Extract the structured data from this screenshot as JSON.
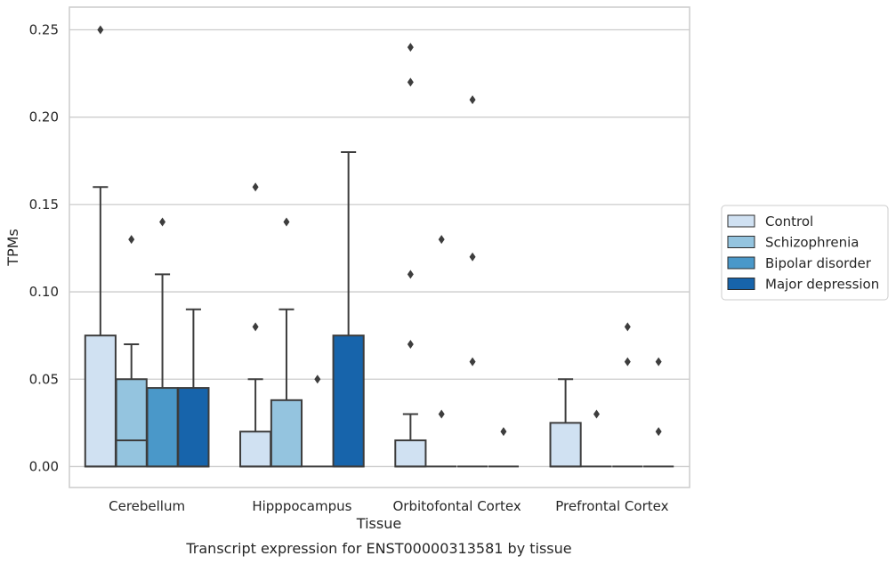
{
  "chart_data": {
    "type": "boxplot",
    "title": "",
    "xlabel": "Tissue",
    "ylabel": "TPMs",
    "caption": "Transcript expression for ENST00000313581 by tissue",
    "ylim": [
      -0.012,
      0.263
    ],
    "yticks": [
      0.0,
      0.05,
      0.1,
      0.15,
      0.2,
      0.25
    ],
    "ytick_labels": [
      "0.00",
      "0.05",
      "0.10",
      "0.15",
      "0.20",
      "0.25"
    ],
    "grid": "horizontal",
    "legend_position": "right",
    "categories": [
      "Cerebellum",
      "Hipppocampus",
      "Orbitofontal Cortex",
      "Prefrontal Cortex"
    ],
    "series": [
      {
        "name": "Control",
        "color": "#d0e1f2",
        "boxes": [
          {
            "q1": 0.0,
            "median": 0.0,
            "q3": 0.075,
            "whisker_low": 0.0,
            "whisker_high": 0.16,
            "outliers": [
              0.25
            ]
          },
          {
            "q1": 0.0,
            "median": 0.0,
            "q3": 0.02,
            "whisker_low": 0.0,
            "whisker_high": 0.05,
            "outliers": [
              0.08,
              0.16
            ]
          },
          {
            "q1": 0.0,
            "median": 0.0,
            "q3": 0.015,
            "whisker_low": 0.0,
            "whisker_high": 0.03,
            "outliers": [
              0.07,
              0.11,
              0.22,
              0.24
            ]
          },
          {
            "q1": 0.0,
            "median": 0.0,
            "q3": 0.025,
            "whisker_low": 0.0,
            "whisker_high": 0.05,
            "outliers": []
          }
        ]
      },
      {
        "name": "Schizophrenia",
        "color": "#94c4df",
        "boxes": [
          {
            "q1": 0.0,
            "median": 0.015,
            "q3": 0.05,
            "whisker_low": 0.0,
            "whisker_high": 0.07,
            "outliers": [
              0.13
            ]
          },
          {
            "q1": 0.0,
            "median": 0.0,
            "q3": 0.038,
            "whisker_low": 0.0,
            "whisker_high": 0.09,
            "outliers": [
              0.14
            ]
          },
          {
            "q1": 0.0,
            "median": 0.0,
            "q3": 0.0,
            "whisker_low": 0.0,
            "whisker_high": 0.0,
            "outliers": [
              0.03,
              0.13
            ]
          },
          {
            "q1": 0.0,
            "median": 0.0,
            "q3": 0.0,
            "whisker_low": 0.0,
            "whisker_high": 0.0,
            "outliers": [
              0.03
            ]
          }
        ]
      },
      {
        "name": "Bipolar disorder",
        "color": "#4a98c9",
        "boxes": [
          {
            "q1": 0.0,
            "median": 0.0,
            "q3": 0.045,
            "whisker_low": 0.0,
            "whisker_high": 0.11,
            "outliers": [
              0.14
            ]
          },
          {
            "q1": 0.0,
            "median": 0.0,
            "q3": 0.0,
            "whisker_low": 0.0,
            "whisker_high": 0.0,
            "outliers": [
              0.05
            ]
          },
          {
            "q1": 0.0,
            "median": 0.0,
            "q3": 0.0,
            "whisker_low": 0.0,
            "whisker_high": 0.0,
            "outliers": [
              0.06,
              0.12,
              0.21
            ]
          },
          {
            "q1": 0.0,
            "median": 0.0,
            "q3": 0.0,
            "whisker_low": 0.0,
            "whisker_high": 0.0,
            "outliers": [
              0.06,
              0.08
            ]
          }
        ]
      },
      {
        "name": "Major depression",
        "color": "#1764ab",
        "boxes": [
          {
            "q1": 0.0,
            "median": 0.0,
            "q3": 0.045,
            "whisker_low": 0.0,
            "whisker_high": 0.09,
            "outliers": []
          },
          {
            "q1": 0.0,
            "median": 0.0,
            "q3": 0.075,
            "whisker_low": 0.0,
            "whisker_high": 0.18,
            "outliers": []
          },
          {
            "q1": 0.0,
            "median": 0.0,
            "q3": 0.0,
            "whisker_low": 0.0,
            "whisker_high": 0.0,
            "outliers": [
              0.02
            ]
          },
          {
            "q1": 0.0,
            "median": 0.0,
            "q3": 0.0,
            "whisker_low": 0.0,
            "whisker_high": 0.0,
            "outliers": [
              0.02,
              0.06
            ]
          }
        ]
      }
    ]
  },
  "colors": {
    "grid": "#cccccc",
    "frame": "#cccccc",
    "box_edge": "#3d3d3d",
    "text": "#262626"
  }
}
